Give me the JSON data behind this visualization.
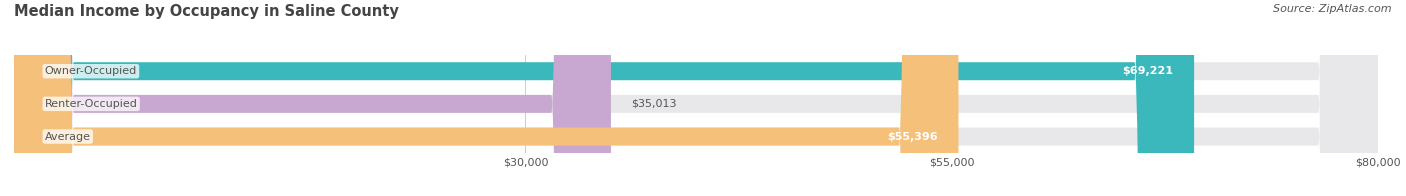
{
  "title": "Median Income by Occupancy in Saline County",
  "source": "Source: ZipAtlas.com",
  "categories": [
    "Owner-Occupied",
    "Renter-Occupied",
    "Average"
  ],
  "values": [
    69221,
    35013,
    55396
  ],
  "bar_colors": [
    "#3bb8bc",
    "#c8a8d0",
    "#f5c07a"
  ],
  "value_labels": [
    "$69,221",
    "$35,013",
    "$55,396"
  ],
  "xmin": 0,
  "xmax": 80000,
  "xticks": [
    30000,
    55000,
    80000
  ],
  "xtick_labels": [
    "$30,000",
    "$55,000",
    "$80,000"
  ],
  "title_fontsize": 10.5,
  "label_fontsize": 8,
  "tick_fontsize": 8,
  "source_fontsize": 8,
  "background_color": "#ffffff",
  "bar_height": 0.55,
  "label_color": "#555555",
  "title_color": "#444444",
  "bg_bar_color": "#e8e8ea"
}
